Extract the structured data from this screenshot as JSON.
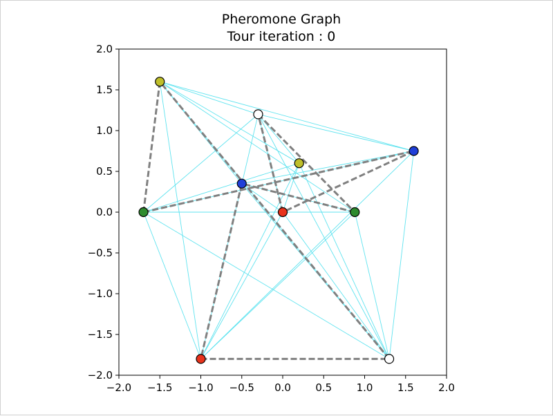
{
  "chart_data": {
    "type": "scatter",
    "title_lines": [
      "Pheromone Graph",
      "Tour iteration : 0"
    ],
    "xlim": [
      -2.0,
      2.0
    ],
    "ylim": [
      -2.0,
      2.0
    ],
    "xticks": [
      "−2.0",
      "−1.5",
      "−1.0",
      "−0.5",
      "0.0",
      "0.5",
      "1.0",
      "1.5",
      "2.0"
    ],
    "yticks": [
      "2.0",
      "1.5",
      "1.0",
      "0.5",
      "0.0",
      "−0.5",
      "−1.0",
      "−1.5",
      "−2.0"
    ],
    "xtick_values": [
      -2.0,
      -1.5,
      -1.0,
      -0.5,
      0.0,
      0.5,
      1.0,
      1.5,
      2.0
    ],
    "ytick_values": [
      2.0,
      1.5,
      1.0,
      0.5,
      0.0,
      -0.5,
      -1.0,
      -1.5,
      -2.0
    ],
    "grid": false,
    "edge_color": "#5fe3ef",
    "tour_color": "#808080",
    "nodes": [
      {
        "id": "n0",
        "x": -1.5,
        "y": 1.6,
        "color": "#bfbf2a"
      },
      {
        "id": "n1",
        "x": -0.3,
        "y": 1.2,
        "color": "#ffffff"
      },
      {
        "id": "n2",
        "x": 0.2,
        "y": 0.6,
        "color": "#bfbf2a"
      },
      {
        "id": "n3",
        "x": 1.6,
        "y": 0.75,
        "color": "#1f3fd8"
      },
      {
        "id": "n4",
        "x": -0.5,
        "y": 0.35,
        "color": "#1f3fd8"
      },
      {
        "id": "n5",
        "x": -1.7,
        "y": 0.0,
        "color": "#2e8b2e"
      },
      {
        "id": "n6",
        "x": 0.0,
        "y": 0.0,
        "color": "#e8331c"
      },
      {
        "id": "n7",
        "x": 0.88,
        "y": 0.0,
        "color": "#2e8b2e"
      },
      {
        "id": "n8",
        "x": -1.0,
        "y": -1.8,
        "color": "#e8331c"
      },
      {
        "id": "n9",
        "x": 1.3,
        "y": -1.8,
        "color": "#ffffff"
      }
    ],
    "tour": [
      [
        0,
        5
      ],
      [
        5,
        3
      ],
      [
        3,
        6
      ],
      [
        6,
        1
      ],
      [
        1,
        7
      ],
      [
        7,
        4
      ],
      [
        4,
        8
      ],
      [
        8,
        9
      ],
      [
        9,
        0
      ]
    ],
    "edges": [
      [
        0,
        1
      ],
      [
        0,
        2
      ],
      [
        0,
        3
      ],
      [
        0,
        4
      ],
      [
        0,
        7
      ],
      [
        0,
        8
      ],
      [
        0,
        9
      ],
      [
        1,
        2
      ],
      [
        1,
        3
      ],
      [
        1,
        5
      ],
      [
        1,
        6
      ],
      [
        1,
        8
      ],
      [
        1,
        9
      ],
      [
        2,
        5
      ],
      [
        2,
        6
      ],
      [
        2,
        8
      ],
      [
        2,
        9
      ],
      [
        3,
        4
      ],
      [
        3,
        5
      ],
      [
        3,
        8
      ],
      [
        3,
        9
      ],
      [
        4,
        6
      ],
      [
        4,
        7
      ],
      [
        4,
        9
      ],
      [
        5,
        6
      ],
      [
        5,
        7
      ],
      [
        5,
        8
      ],
      [
        5,
        9
      ],
      [
        6,
        8
      ],
      [
        6,
        9
      ],
      [
        7,
        8
      ],
      [
        7,
        9
      ]
    ]
  }
}
